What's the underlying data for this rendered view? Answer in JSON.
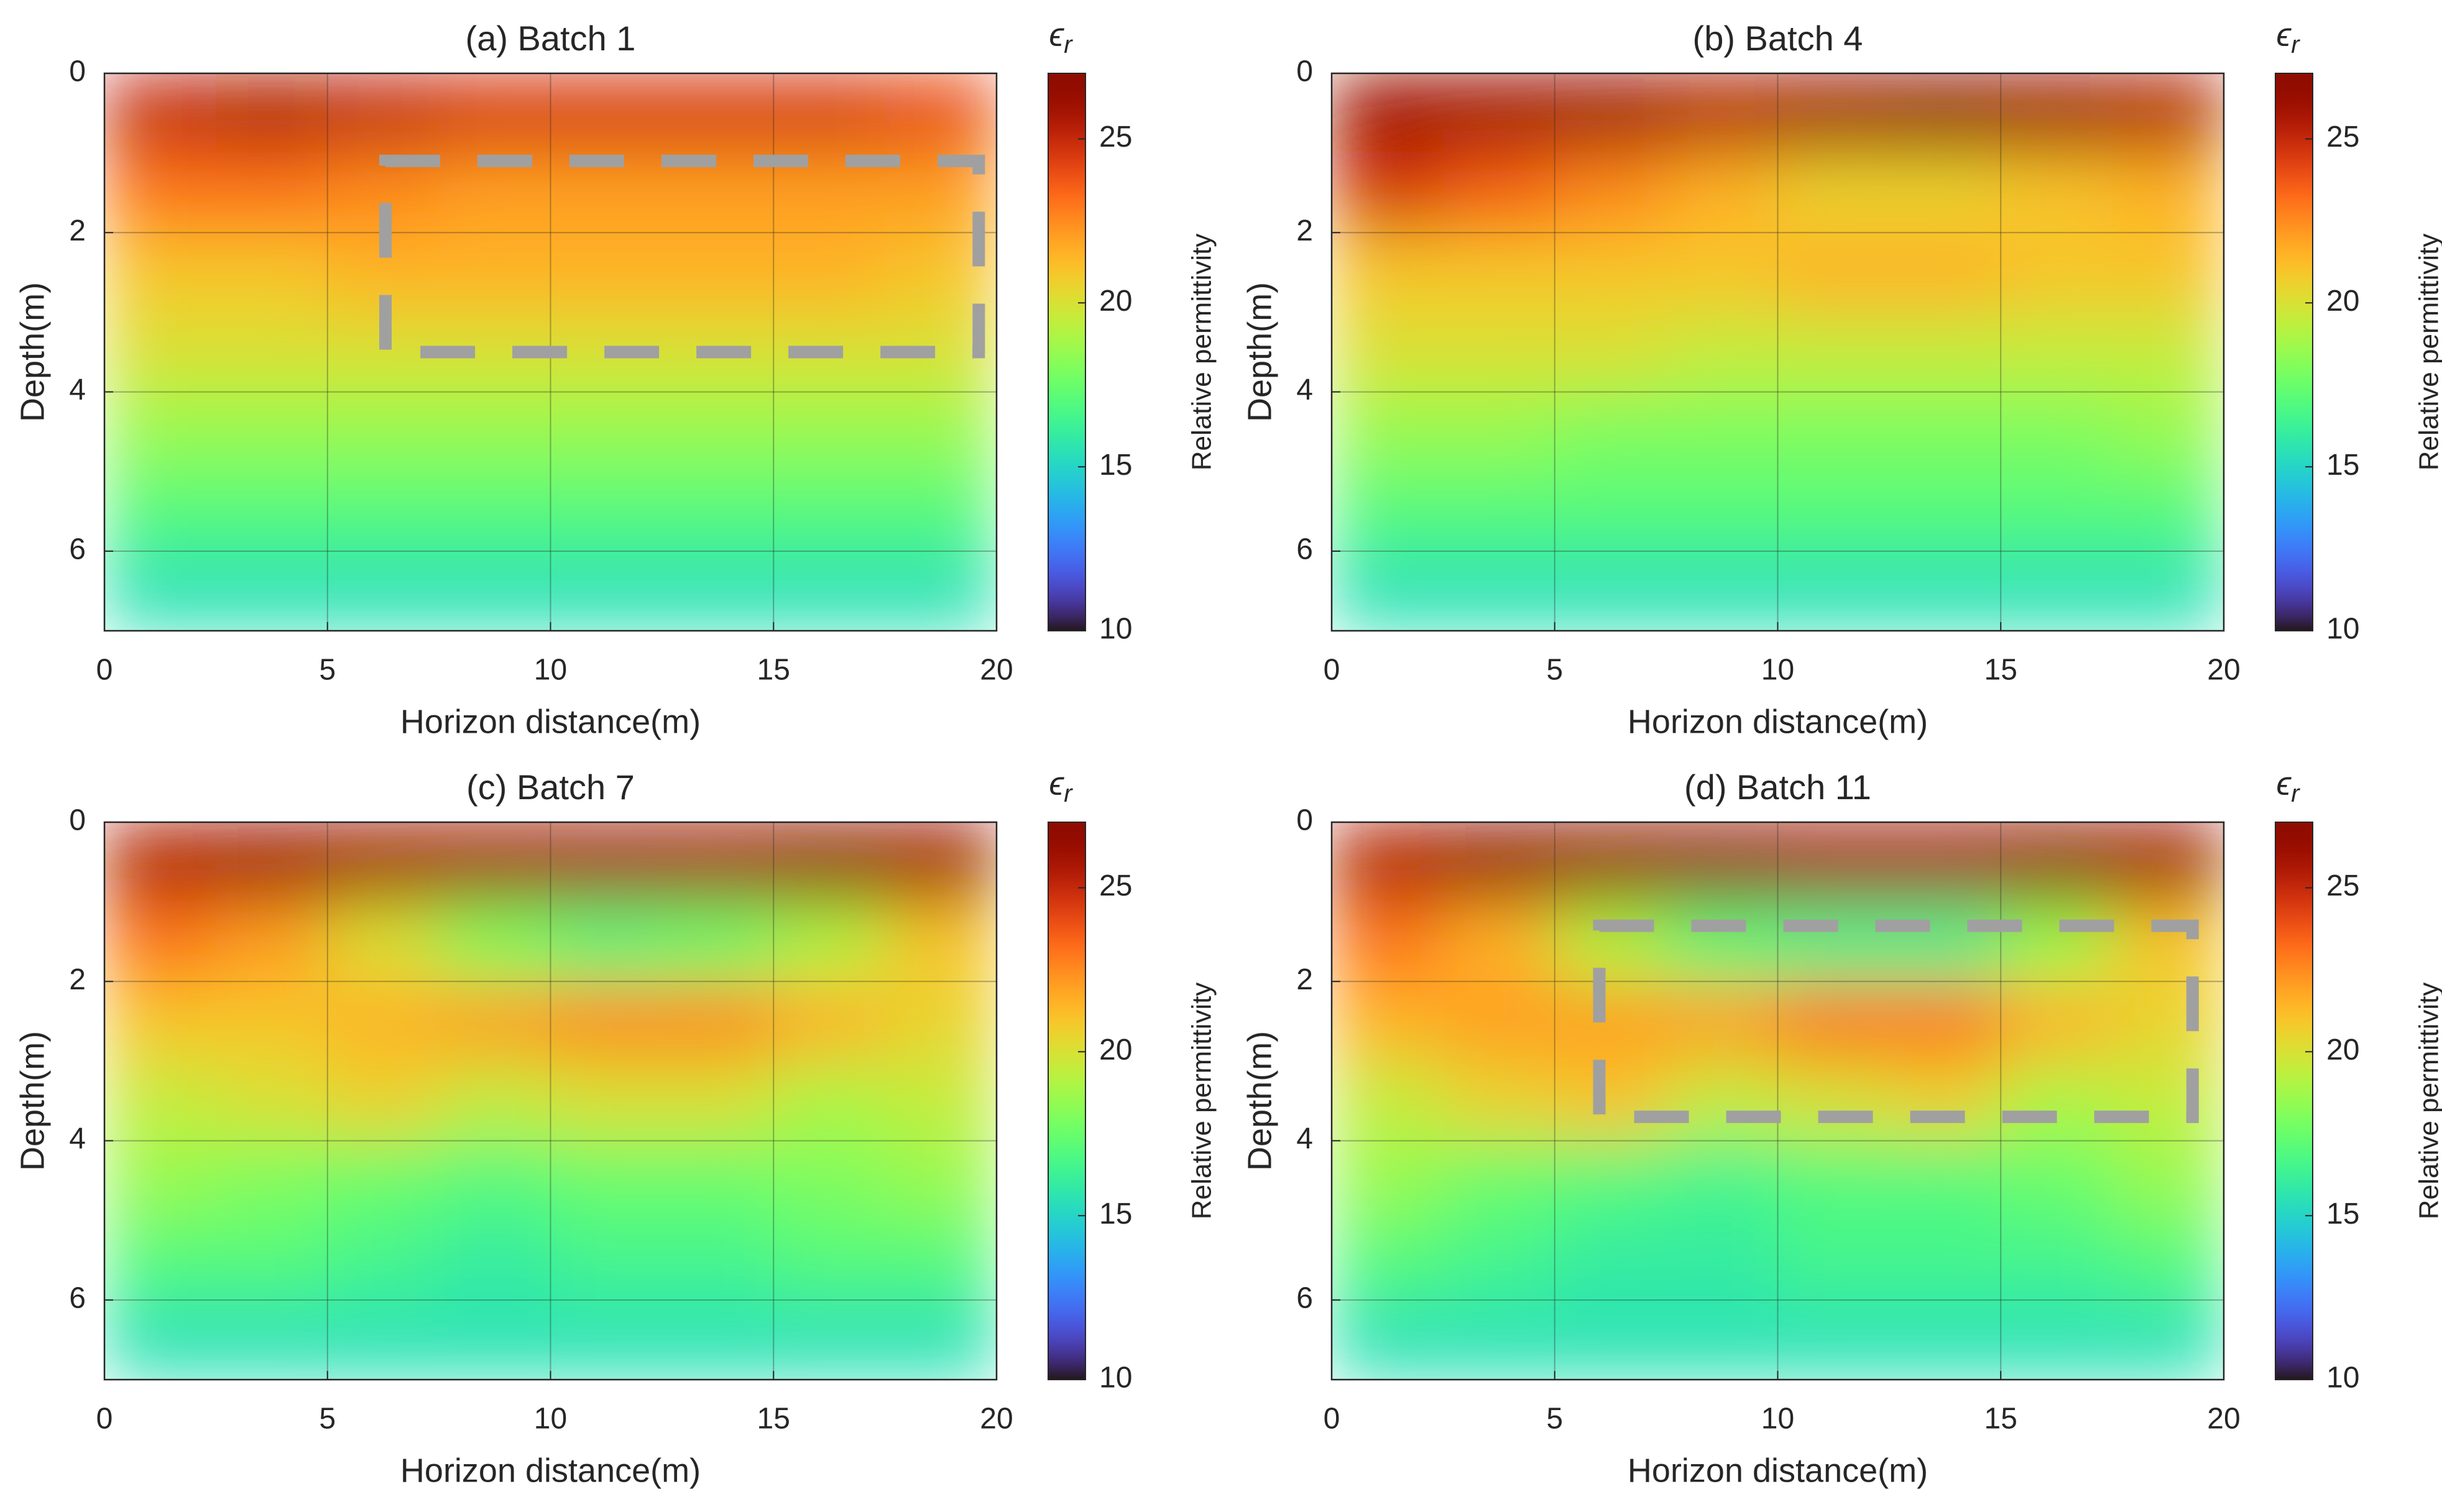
{
  "chart_data": [
    {
      "type": "heatmap",
      "title": "(a) Batch 1",
      "xlabel": "Horizon distance(m)",
      "ylabel": "Depth(m)",
      "colorbar_label": "Relative permittivity",
      "colorbar_symbol": "ϵ",
      "colorbar_symbol_sub": "r",
      "colormap": "turbo",
      "xlim": [
        0,
        20
      ],
      "xticks": [
        0,
        5,
        10,
        15,
        20
      ],
      "ylim": [
        0,
        7
      ],
      "yticks": [
        0,
        2,
        4,
        6
      ],
      "y_inverted": true,
      "grid": true,
      "clim": [
        10,
        27
      ],
      "cticks": [
        10,
        15,
        20,
        25
      ],
      "x": [
        1.25,
        3.75,
        6.25,
        8.75,
        11.25,
        13.75,
        16.25,
        18.75
      ],
      "y": [
        0.5,
        1.5,
        2.5,
        3.5,
        4.5,
        5.5,
        6.5
      ],
      "z": [
        [
          25,
          25.5,
          25,
          24.5,
          24.5,
          24.5,
          24.5,
          24
        ],
        [
          23,
          23,
          22.5,
          22,
          22,
          22,
          22,
          22
        ],
        [
          21,
          21,
          21.5,
          21.5,
          21.5,
          21.5,
          21.5,
          21
        ],
        [
          20,
          20,
          20,
          20,
          20,
          20,
          20,
          20
        ],
        [
          18.5,
          18.5,
          18.5,
          18.5,
          18.5,
          18.5,
          18.5,
          18.5
        ],
        [
          17,
          17,
          17,
          17,
          17,
          17,
          17,
          17
        ],
        [
          15.5,
          15.5,
          15.5,
          15.5,
          15.5,
          15.5,
          15.5,
          15.5
        ]
      ],
      "box": {
        "x0": 6.3,
        "x1": 19.6,
        "y0": 1.1,
        "y1": 3.5,
        "color": "#a0a0a0"
      }
    },
    {
      "type": "heatmap",
      "title": "(b) Batch 4",
      "xlabel": "Horizon distance(m)",
      "ylabel": "Depth(m)",
      "colorbar_label": "Relative permittivity",
      "colorbar_symbol": "ϵ",
      "colorbar_symbol_sub": "r",
      "colormap": "turbo",
      "xlim": [
        0,
        20
      ],
      "xticks": [
        0,
        5,
        10,
        15,
        20
      ],
      "ylim": [
        0,
        7
      ],
      "yticks": [
        0,
        2,
        4,
        6
      ],
      "y_inverted": true,
      "grid": true,
      "clim": [
        10,
        27
      ],
      "cticks": [
        10,
        15,
        20,
        25
      ],
      "x": [
        1.25,
        3.75,
        6.25,
        8.75,
        11.25,
        13.75,
        16.25,
        18.75
      ],
      "y": [
        0.5,
        1.5,
        2.5,
        3.5,
        4.5,
        5.5,
        6.5
      ],
      "z": [
        [
          26,
          26,
          26,
          25.5,
          26,
          26.5,
          26,
          25.5
        ],
        [
          24.5,
          23.5,
          22.5,
          21.5,
          20.5,
          20.5,
          21,
          21.5
        ],
        [
          21,
          21,
          21,
          21,
          21.5,
          21.5,
          21,
          21
        ],
        [
          20,
          20,
          20,
          19.5,
          19.5,
          19.5,
          19.5,
          19.5
        ],
        [
          18.5,
          18.5,
          18,
          18,
          18,
          18,
          18,
          18.5
        ],
        [
          17,
          17,
          17,
          17,
          17,
          17,
          17,
          17
        ],
        [
          15.5,
          15.5,
          15.5,
          15.5,
          15.5,
          15.5,
          15.5,
          15.5
        ]
      ]
    },
    {
      "type": "heatmap",
      "title": "(c) Batch 7",
      "xlabel": "Horizon distance(m)",
      "ylabel": "Depth(m)",
      "colorbar_label": "Relative permittivity",
      "colorbar_symbol": "ϵ",
      "colorbar_symbol_sub": "r",
      "colormap": "turbo",
      "xlim": [
        0,
        20
      ],
      "xticks": [
        0,
        5,
        10,
        15,
        20
      ],
      "ylim": [
        0,
        7
      ],
      "yticks": [
        0,
        2,
        4,
        6
      ],
      "y_inverted": true,
      "grid": true,
      "clim": [
        10,
        27
      ],
      "cticks": [
        10,
        15,
        20,
        25
      ],
      "x": [
        1.25,
        3.75,
        6.25,
        8.75,
        11.25,
        13.75,
        16.25,
        18.75
      ],
      "y": [
        0.5,
        1.5,
        2.5,
        3.5,
        4.5,
        5.5,
        6.5
      ],
      "z": [
        [
          25.5,
          26,
          26,
          26,
          26,
          26,
          26.5,
          26
        ],
        [
          23,
          22,
          20,
          18,
          17,
          17.5,
          19,
          21
        ],
        [
          21,
          21,
          21.5,
          22,
          22.5,
          22.5,
          21.5,
          20.5
        ],
        [
          19.5,
          20,
          20.5,
          19.5,
          20,
          20,
          19,
          19.5
        ],
        [
          18.5,
          18,
          17.5,
          17,
          17.5,
          17.5,
          18,
          18.5
        ],
        [
          17,
          17,
          16.5,
          16,
          16.5,
          16.5,
          17,
          17
        ],
        [
          15.5,
          15.5,
          15.5,
          15.5,
          15.5,
          15.5,
          15.5,
          15.5
        ]
      ]
    },
    {
      "type": "heatmap",
      "title": "(d) Batch 11",
      "xlabel": "Horizon distance(m)",
      "ylabel": "Depth(m)",
      "colorbar_label": "Relative permittivity",
      "colorbar_symbol": "ϵ",
      "colorbar_symbol_sub": "r",
      "colormap": "turbo",
      "xlim": [
        0,
        20
      ],
      "xticks": [
        0,
        5,
        10,
        15,
        20
      ],
      "ylim": [
        0,
        7
      ],
      "yticks": [
        0,
        2,
        4,
        6
      ],
      "y_inverted": true,
      "grid": true,
      "clim": [
        10,
        27
      ],
      "cticks": [
        10,
        15,
        20,
        25
      ],
      "x": [
        1.25,
        3.75,
        6.25,
        8.75,
        11.25,
        13.75,
        16.25,
        18.75
      ],
      "y": [
        0.5,
        1.5,
        2.5,
        3.5,
        4.5,
        5.5,
        6.5
      ],
      "z": [
        [
          25.5,
          26.5,
          26.5,
          26.5,
          26,
          26,
          26.5,
          26
        ],
        [
          23,
          21.5,
          19,
          17,
          16.5,
          16.5,
          18.5,
          21
        ],
        [
          21.5,
          22,
          22,
          22,
          23,
          23,
          21.5,
          20.5
        ],
        [
          19.5,
          20.5,
          21,
          19.5,
          20,
          20.5,
          19,
          19.5
        ],
        [
          18.5,
          17.5,
          17,
          16.5,
          17,
          17,
          17.5,
          18.5
        ],
        [
          17,
          16.5,
          16,
          16,
          16.5,
          16.5,
          16.5,
          17
        ],
        [
          15.5,
          15.5,
          15.5,
          15.5,
          15.5,
          15.5,
          15.5,
          15.5
        ]
      ],
      "box": {
        "x0": 6.0,
        "x1": 19.3,
        "y0": 1.3,
        "y1": 3.7,
        "color": "#a0a0a0"
      }
    }
  ]
}
